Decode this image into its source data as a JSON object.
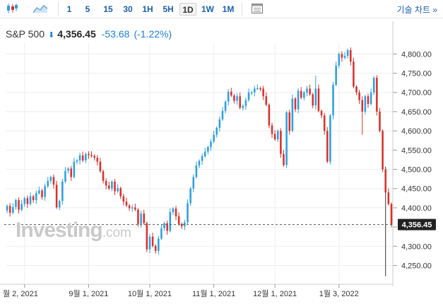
{
  "toolbar": {
    "chart_type_icons": [
      "candlestick-icon",
      "area-chart-icon"
    ],
    "intervals": [
      "1",
      "5",
      "15",
      "30",
      "1H",
      "5H",
      "1D",
      "1W",
      "1M"
    ],
    "active_interval": "1D",
    "table_icon": "table-icon",
    "tech_chart_label": "기술 차트 »"
  },
  "quote": {
    "name": "S&P 500",
    "arrow": "⬇",
    "price": "4,356.45",
    "change": "-53.68",
    "change_pct": "(-1.22%)"
  },
  "colors": {
    "up": "#2e9fe0",
    "down": "#d9312a",
    "accent": "#1d5fb0",
    "price_tag": "#222222"
  },
  "watermark": {
    "word": "Investing",
    "suffix": ".com"
  },
  "chart_data": {
    "type": "candlestick",
    "title": "",
    "xlabel": "",
    "ylabel": "",
    "ylim": [
      4205,
      4830
    ],
    "y_ticks": [
      "4,800.00",
      "4,750.00",
      "4,700.00",
      "4,650.00",
      "4,600.00",
      "4,550.00",
      "4,500.00",
      "4,450.00",
      "4,400.00",
      "4,350.00",
      "4,300.00",
      "4,250.00"
    ],
    "y_tick_values": [
      4800,
      4750,
      4700,
      4650,
      4600,
      4550,
      4500,
      4450,
      4400,
      4350,
      4300,
      4250
    ],
    "x_ticks": [
      {
        "label": "월 2, 2021",
        "index": 6
      },
      {
        "label": "9월 1, 2021",
        "index": 28
      },
      {
        "label": "10월 1, 2021",
        "index": 49
      },
      {
        "label": "11월 1, 2021",
        "index": 71
      },
      {
        "label": "12월 1, 2021",
        "index": 92
      },
      {
        "label": "1월 3, 2022",
        "index": 114
      }
    ],
    "last_price": 4356.45,
    "last_price_label": "4,356.45",
    "close": [
      4405,
      4387,
      4402,
      4420,
      4395,
      4410,
      4425,
      4410,
      4430,
      4420,
      4438,
      4445,
      4428,
      4456,
      4470,
      4480,
      4460,
      4401,
      4418,
      4468,
      4496,
      4502,
      4480,
      4520,
      4523,
      4536,
      4523,
      4540,
      4537,
      4535,
      4530,
      4520,
      4495,
      4470,
      4458,
      4450,
      4468,
      4443,
      4451,
      4430,
      4416,
      4406,
      4399,
      4401,
      4395,
      4358,
      4385,
      4360,
      4292,
      4325,
      4301,
      4288,
      4320,
      4347,
      4360,
      4340,
      4389,
      4398,
      4378,
      4358,
      4352,
      4362,
      4412,
      4450,
      4480,
      4510,
      4522,
      4534,
      4546,
      4558,
      4572,
      4590,
      4608,
      4630,
      4652,
      4676,
      4702,
      4692,
      4678,
      4690,
      4660,
      4665,
      4680,
      4700,
      4700,
      4710,
      4711,
      4710,
      4690,
      4668,
      4614,
      4592,
      4578,
      4600,
      4540,
      4511,
      4648,
      4600,
      4684,
      4656,
      4704,
      4686,
      4700,
      4710,
      4695,
      4666,
      4710,
      4652,
      4640,
      4600,
      4520,
      4640,
      4720,
      4770,
      4800,
      4790,
      4795,
      4810,
      4780,
      4715,
      4700,
      4680,
      4650,
      4690,
      4670,
      4700,
      4738,
      4650,
      4600,
      4500,
      4440,
      4410,
      4356.45
    ]
  }
}
